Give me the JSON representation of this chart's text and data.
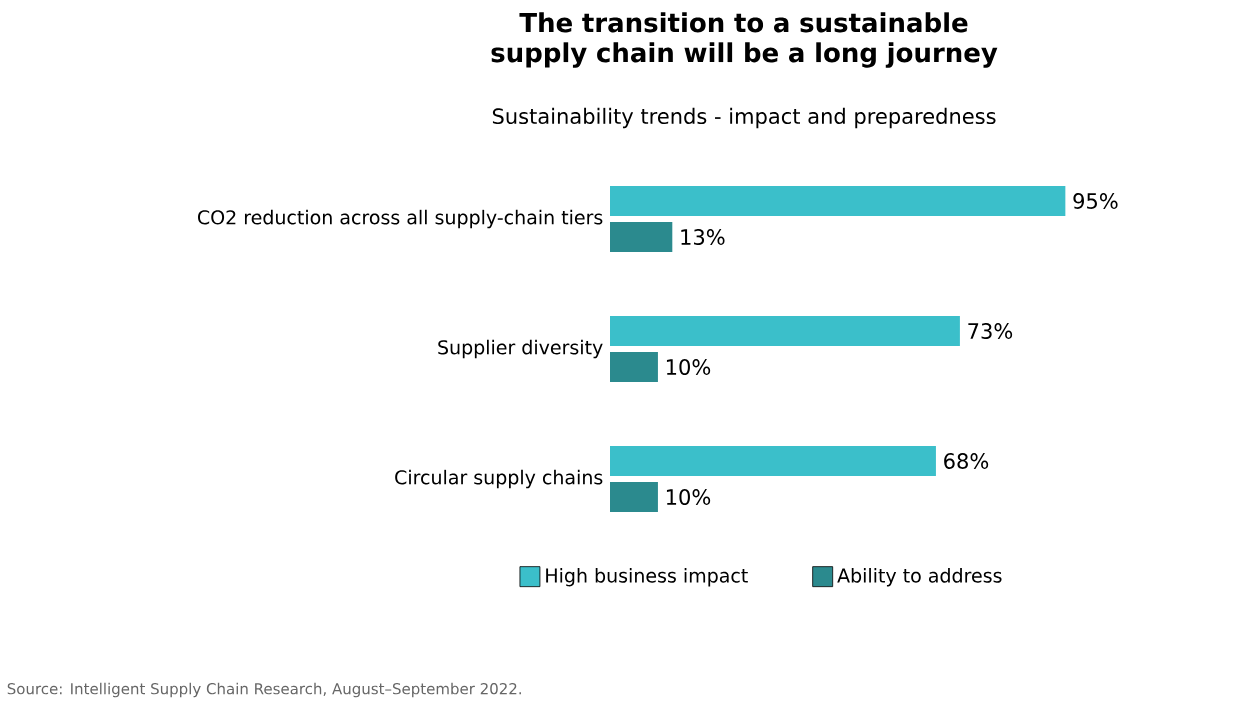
{
  "chart_data": {
    "type": "bar",
    "orientation": "horizontal",
    "title": "The transition to a sustainable supply chain will be a long journey",
    "subtitle": "Sustainability trends - impact and preparedness",
    "categories": [
      "CO2 reduction across all supply-chain tiers",
      "Supplier diversity",
      "Circular supply chains"
    ],
    "series": [
      {
        "name": "High business impact",
        "color": "#3bbfca",
        "values": [
          95,
          73,
          68
        ],
        "value_labels": [
          "95%",
          "73%",
          "68%"
        ]
      },
      {
        "name": "Ability to address",
        "color": "#2b8a8e",
        "values": [
          13,
          10,
          10
        ],
        "value_labels": [
          "13%",
          "10%",
          "10%"
        ]
      }
    ],
    "legend": "bottom",
    "annotations": [
      "Source: Intelligent Supply Chain Research, August–September 2022."
    ]
  }
}
